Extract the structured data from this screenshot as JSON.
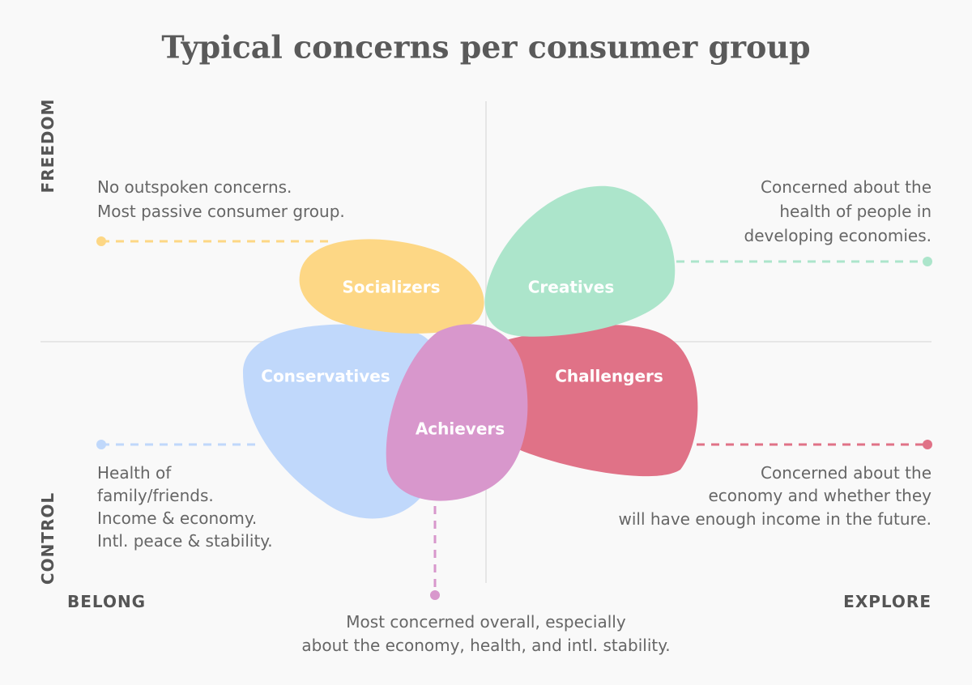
{
  "title": "Typical concerns per consumer group",
  "axes": {
    "top": "FREEDOM",
    "bottom": "CONTROL",
    "left": "BELONG",
    "right": "EXPLORE"
  },
  "groups": [
    {
      "name": "Socializers",
      "concern": [
        "No outspoken concerns.",
        "Most passive consumer group."
      ]
    },
    {
      "name": "Creatives",
      "concern": [
        "Concerned about the",
        "health of people in",
        "developing economies."
      ]
    },
    {
      "name": "Conservatives",
      "concern": [
        "Health of",
        "family/friends.",
        "Income & economy.",
        "Intl. peace & stability."
      ]
    },
    {
      "name": "Challengers",
      "concern": [
        "Concerned about the",
        "economy and whether they",
        "will have enough income in the future."
      ]
    },
    {
      "name": "Achievers",
      "concern": [
        "Most concerned overall, especially",
        "about the economy, health, and intl. stability."
      ]
    }
  ]
}
